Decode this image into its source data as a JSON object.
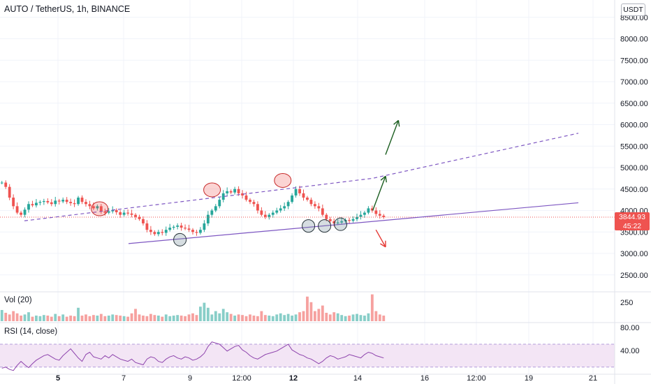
{
  "header": {
    "title": "AUTO / TetherUS, 1h, BINANCE"
  },
  "currency": "USDT",
  "last_price": {
    "value": "3844.93",
    "countdown": "45:22"
  },
  "panes": {
    "volume_label": "Vol (20)",
    "rsi_label": "RSI (14, close)"
  },
  "colors": {
    "up": "#26a69a",
    "down": "#ef5350",
    "channel": "#7e57c2",
    "rsi_line": "#8e44ad",
    "rsi_band": "#f3e5f5",
    "bull_arrow": "#1b5e20",
    "bear_arrow": "#e53935",
    "price_tag": "#ef5350"
  },
  "chart_data": [
    {
      "type": "line",
      "title": "AUTO / TetherUS, 1h, BINANCE",
      "y_ticks": [
        "8500.00",
        "8000.00",
        "7500.00",
        "7000.00",
        "6500.00",
        "6000.00",
        "5500.00",
        "5000.00",
        "4500.00",
        "4000.00",
        "3500.00",
        "3000.00",
        "2500.00"
      ],
      "ylim": [
        2000,
        8800
      ],
      "x_ticks": [
        "5",
        "7",
        "9",
        "12:00",
        "12",
        "14",
        "16",
        "12:00",
        "19",
        "21"
      ],
      "series": [
        {
          "values": [
            4650,
            4550,
            4300,
            4100,
            3950,
            3900,
            4020,
            4150,
            4120,
            4180,
            4200,
            4220,
            4190,
            4150,
            4230,
            4210,
            4250,
            4200,
            4170,
            4150,
            4300,
            4200,
            4150,
            4100,
            4050,
            4100,
            3980,
            3950,
            3980,
            4010,
            3960,
            3900,
            3950,
            3930,
            3900,
            3850,
            3800,
            3700,
            3550,
            3500,
            3450,
            3500,
            3480,
            3550,
            3600,
            3620,
            3650,
            3600,
            3580,
            3550,
            3500,
            3480,
            3550,
            3700,
            3900,
            4000,
            4100,
            4250,
            4400,
            4450,
            4420,
            4500,
            4400,
            4350,
            4250,
            4200,
            4150,
            4000,
            3900,
            3850,
            3900,
            3950,
            4000,
            4050,
            4100,
            4200,
            4350,
            4500,
            4400,
            4300,
            4250,
            4150,
            4100,
            4050,
            3900,
            3800,
            3750,
            3700,
            3720,
            3750,
            3780,
            3760,
            3800,
            3850,
            3900,
            3950,
            4050,
            4000,
            3920,
            3880,
            3845
          ],
          "last": 3844.93
        }
      ],
      "channel": {
        "upper_dashed": [
          [
            3.8,
            3760
          ],
          [
            58.0,
            4750
          ],
          [
            90.0,
            5800
          ]
        ],
        "lower_solid": [
          [
            20.0,
            3230
          ],
          [
            90.0,
            4180
          ]
        ]
      },
      "highlight_circles": {
        "resistance": [
          [
            15.5,
            4040
          ],
          [
            33.0,
            4480
          ],
          [
            44.0,
            4700
          ]
        ],
        "support": [
          [
            28.0,
            3320
          ],
          [
            48.0,
            3640
          ],
          [
            50.5,
            3640
          ],
          [
            53.0,
            3680
          ]
        ]
      },
      "arrows": [
        {
          "direction": "up",
          "from": [
            58.0,
            4000
          ],
          "to": [
            60.0,
            4800
          ]
        },
        {
          "direction": "up",
          "from": [
            60.0,
            5300
          ],
          "to": [
            62.0,
            6100
          ]
        },
        {
          "direction": "down",
          "from": [
            58.5,
            3550
          ],
          "to": [
            60.0,
            3150
          ]
        }
      ]
    },
    {
      "type": "bar",
      "title": "Vol (20)",
      "y_ticks": [
        "250"
      ],
      "values": [
        20,
        15,
        12,
        18,
        14,
        10,
        12,
        16,
        8,
        10,
        9,
        11,
        10,
        8,
        13,
        9,
        12,
        8,
        10,
        9,
        24,
        10,
        12,
        9,
        11,
        10,
        13,
        9,
        10,
        12,
        11,
        10,
        9,
        8,
        14,
        22,
        12,
        10,
        9,
        13,
        11,
        10,
        8,
        12,
        9,
        10,
        11,
        10,
        9,
        12,
        14,
        11,
        26,
        33,
        24,
        12,
        18,
        14,
        22,
        16,
        13,
        10,
        12,
        11,
        9,
        12,
        10,
        9,
        18,
        11,
        10,
        9,
        12,
        14,
        11,
        13,
        10,
        12,
        16,
        18,
        44,
        34,
        18,
        22,
        28,
        15,
        12,
        16,
        14,
        11,
        9,
        10,
        12,
        13,
        11,
        10,
        14,
        48,
        18,
        12,
        10
      ]
    },
    {
      "type": "line",
      "title": "RSI (14, close)",
      "y_ticks": [
        "80.00",
        "40.00"
      ],
      "ylim": [
        20,
        90
      ],
      "band": [
        30,
        70
      ],
      "values": [
        28,
        30,
        26,
        24,
        33,
        40,
        34,
        29,
        36,
        42,
        46,
        50,
        52,
        48,
        44,
        42,
        50,
        56,
        62,
        54,
        46,
        40,
        52,
        56,
        48,
        46,
        44,
        50,
        46,
        52,
        48,
        44,
        42,
        40,
        44,
        38,
        36,
        34,
        44,
        48,
        46,
        40,
        38,
        44,
        48,
        50,
        46,
        44,
        48,
        46,
        42,
        44,
        48,
        54,
        66,
        74,
        72,
        70,
        64,
        58,
        62,
        66,
        68,
        60,
        56,
        50,
        46,
        44,
        48,
        52,
        54,
        56,
        58,
        62,
        66,
        70,
        60,
        56,
        52,
        50,
        46,
        44,
        40,
        36,
        40,
        46,
        50,
        48,
        44,
        46,
        48,
        52,
        50,
        48,
        46,
        52,
        56,
        54,
        50,
        48,
        46
      ]
    }
  ]
}
